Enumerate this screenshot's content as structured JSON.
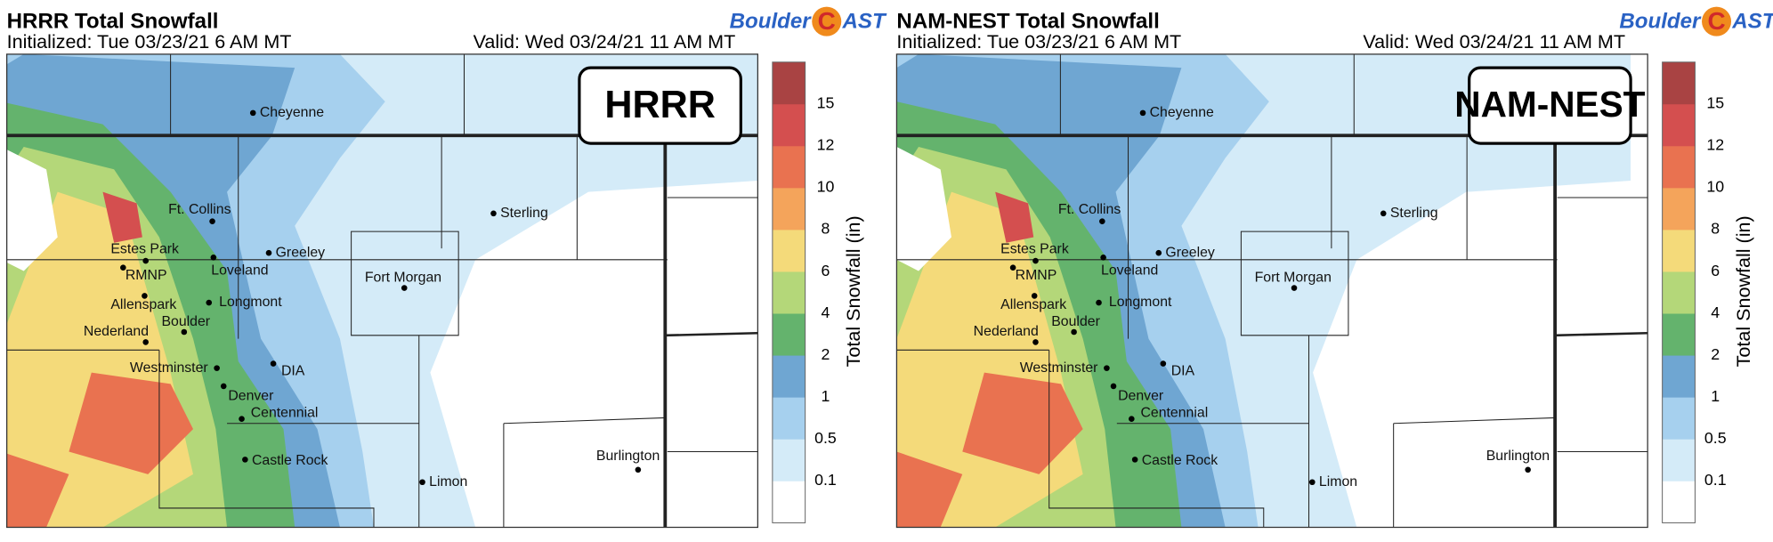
{
  "panels": [
    {
      "title": "HRRR Total Snowfall",
      "initialized": "Initialized: Tue 03/23/21 6 AM MT",
      "valid": "Valid: Wed 03/24/21 11 AM MT",
      "model_label": "HRRR",
      "logo": [
        "Boulder",
        "C",
        "AST"
      ]
    },
    {
      "title": "NAM-NEST Total Snowfall",
      "initialized": "Initialized: Tue 03/23/21 6 AM MT",
      "valid": "Valid: Wed 03/24/21 11 AM MT",
      "model_label": "NAM-NEST",
      "logo": [
        "Boulder",
        "C",
        "AST"
      ]
    }
  ],
  "cities": [
    "Cheyenne",
    "Ft. Collins",
    "Sterling",
    "Estes Park",
    "Loveland",
    "Greeley",
    "Fort Morgan",
    "RMNP",
    "Longmont",
    "Allenspark",
    "Boulder",
    "Nederland",
    "Westminster",
    "DIA",
    "Denver",
    "Centennial",
    "Castle Rock",
    "Limon",
    "Burlington"
  ],
  "colorbar": {
    "label": "Total Snowfall (in)",
    "ticks": [
      "0.1",
      "0.5",
      "1",
      "2",
      "4",
      "6",
      "8",
      "10",
      "12",
      "15"
    ],
    "colors": [
      "#ffffff",
      "#d4ebf8",
      "#a6d0ee",
      "#6fa6d2",
      "#64b36d",
      "#b4d779",
      "#f4da7a",
      "#f4a45b",
      "#e97250",
      "#d44f4f",
      "#a94343"
    ]
  }
}
